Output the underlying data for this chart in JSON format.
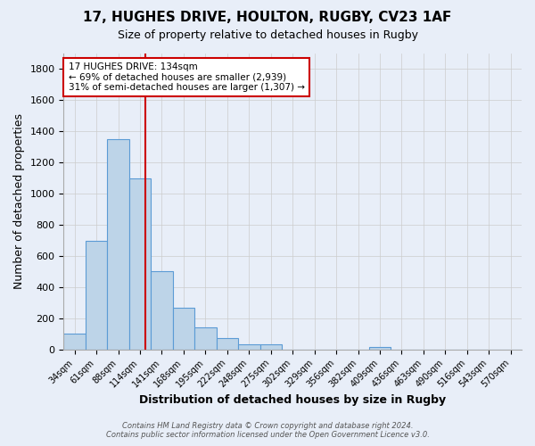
{
  "title": "17, HUGHES DRIVE, HOULTON, RUGBY, CV23 1AF",
  "subtitle": "Size of property relative to detached houses in Rugby",
  "xlabel": "Distribution of detached houses by size in Rugby",
  "ylabel": "Number of detached properties",
  "footer_line1": "Contains HM Land Registry data © Crown copyright and database right 2024.",
  "footer_line2": "Contains public sector information licensed under the Open Government Licence v3.0.",
  "bin_labels": [
    "34sqm",
    "61sqm",
    "88sqm",
    "114sqm",
    "141sqm",
    "168sqm",
    "195sqm",
    "222sqm",
    "248sqm",
    "275sqm",
    "302sqm",
    "329sqm",
    "356sqm",
    "382sqm",
    "409sqm",
    "436sqm",
    "463sqm",
    "490sqm",
    "516sqm",
    "543sqm",
    "570sqm"
  ],
  "values": [
    100,
    700,
    1350,
    1100,
    500,
    270,
    140,
    70,
    35,
    35,
    0,
    0,
    0,
    0,
    15,
    0,
    0,
    0,
    0,
    0,
    0
  ],
  "bar_color": "#bdd4e8",
  "bar_edgecolor": "#5b9bd5",
  "bg_color": "#e8eef8",
  "grid_color": "#cccccc",
  "vline_color": "#cc0000",
  "annotation_line1": "17 HUGHES DRIVE: 134sqm",
  "annotation_line2": "← 69% of detached houses are smaller (2,939)",
  "annotation_line3": "31% of semi-detached houses are larger (1,307) →",
  "annotation_box_color": "#ffffff",
  "annotation_box_edgecolor": "#cc0000",
  "ylim": [
    0,
    1900
  ],
  "yticks": [
    0,
    200,
    400,
    600,
    800,
    1000,
    1200,
    1400,
    1600,
    1800
  ],
  "bin_width": 27,
  "vline_sqm": 134,
  "bin_start_sqm": [
    34,
    61,
    88,
    114,
    141,
    168,
    195,
    222,
    248,
    275,
    302,
    329,
    356,
    382,
    409,
    436,
    463,
    490,
    516,
    543,
    570
  ]
}
